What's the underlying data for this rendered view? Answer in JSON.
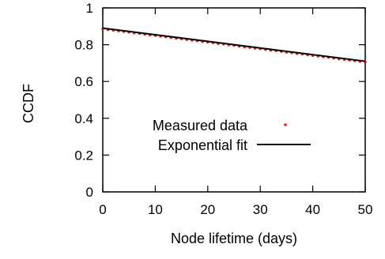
{
  "chart_data": {
    "type": "line",
    "xlabel": "Node lifetime (days)",
    "ylabel": "CCDF",
    "xlim": [
      0,
      50
    ],
    "ylim": [
      0,
      1
    ],
    "xticks": [
      "0",
      "10",
      "20",
      "30",
      "40",
      "50"
    ],
    "yticks": [
      "0",
      "0.2",
      "0.4",
      "0.6",
      "0.8",
      "1"
    ],
    "grid": false,
    "legend_position": "bottom-right",
    "series": [
      {
        "name": "Measured data",
        "style": "points",
        "color": "#e41a1c",
        "x": [
          0,
          1,
          2,
          3,
          4,
          5,
          6,
          7,
          8,
          9,
          10,
          11,
          12,
          13,
          14,
          15,
          16,
          17,
          18,
          19,
          20,
          21,
          22,
          23,
          24,
          25,
          26,
          27,
          28,
          29,
          30,
          31,
          32,
          33,
          34,
          35,
          36,
          37,
          38,
          39,
          40,
          41,
          42,
          43,
          44,
          45,
          46,
          47,
          48,
          49,
          50
        ],
        "y": [
          0.886,
          0.882,
          0.879,
          0.875,
          0.871,
          0.868,
          0.864,
          0.861,
          0.857,
          0.853,
          0.85,
          0.846,
          0.843,
          0.839,
          0.835,
          0.832,
          0.828,
          0.824,
          0.821,
          0.817,
          0.814,
          0.81,
          0.806,
          0.803,
          0.799,
          0.796,
          0.792,
          0.788,
          0.785,
          0.781,
          0.778,
          0.774,
          0.77,
          0.767,
          0.763,
          0.759,
          0.756,
          0.752,
          0.749,
          0.745,
          0.741,
          0.738,
          0.734,
          0.731,
          0.727,
          0.723,
          0.72,
          0.716,
          0.713,
          0.709,
          0.705
        ]
      },
      {
        "name": "Exponential fit",
        "style": "line",
        "color": "#000000",
        "x": [
          0,
          50
        ],
        "y": [
          0.89,
          0.71
        ]
      }
    ]
  }
}
